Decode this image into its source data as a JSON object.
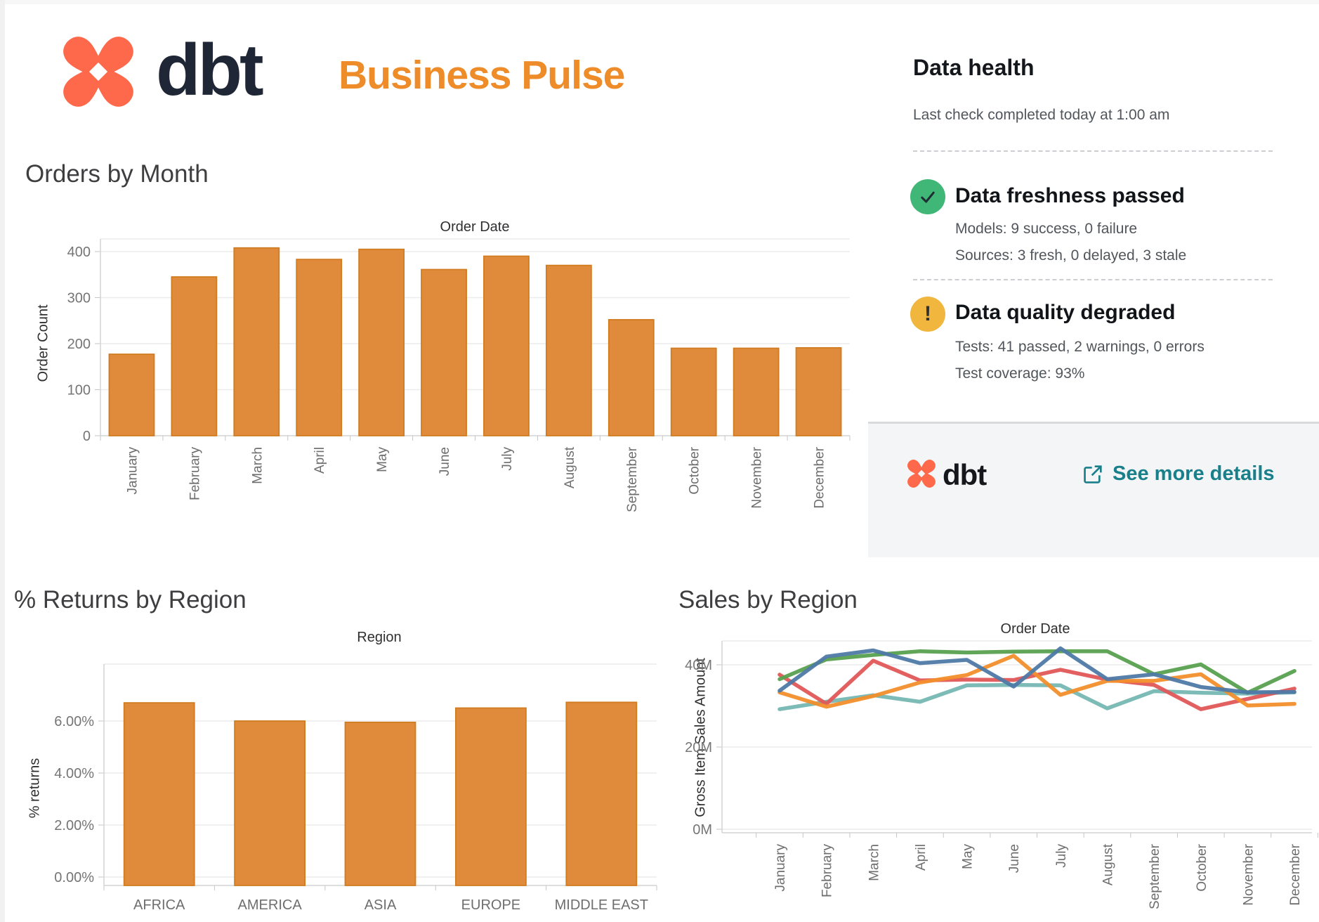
{
  "header": {
    "brand": "dbt",
    "title": "Business Pulse"
  },
  "data_health": {
    "title": "Data health",
    "subtitle": "Last check completed today at 1:00 am",
    "freshness": {
      "status_icon": "check-circle",
      "title": "Data freshness passed",
      "line1": "Models: 9 success, 0 failure",
      "line2": "Sources: 3 fresh, 0 delayed, 3 stale"
    },
    "quality": {
      "status_icon": "warning-circle",
      "title": "Data quality degraded",
      "line1": "Tests: 41 passed, 2 warnings, 0 errors",
      "line2": "Test coverage: 93%"
    },
    "footer": {
      "brand": "dbt",
      "link_label": "See more details",
      "link_icon": "external-link"
    }
  },
  "colors": {
    "brand_orange": "#ff694b",
    "brand_navy": "#1f2736",
    "accent_orange": "#ee8c2a",
    "bar_fill": "#e08a3c",
    "bar_stroke": "#d17c20",
    "success_green": "#41b777",
    "warning_yellow": "#f0b63e",
    "link_teal": "#187f8b"
  },
  "chart_data": [
    {
      "id": "orders-by-month",
      "type": "bar",
      "title": "Orders by Month",
      "xlabel": "Order Date",
      "ylabel": "Order Count",
      "categories": [
        "January",
        "February",
        "March",
        "April",
        "May",
        "June",
        "July",
        "August",
        "September",
        "October",
        "November",
        "December"
      ],
      "values": [
        177,
        345,
        408,
        383,
        405,
        361,
        390,
        370,
        252,
        190,
        190,
        191
      ],
      "yticks": [
        {
          "v": 0,
          "label": "0"
        },
        {
          "v": 100,
          "label": "100"
        },
        {
          "v": 200,
          "label": "200"
        },
        {
          "v": 300,
          "label": "300"
        },
        {
          "v": 400,
          "label": "400"
        }
      ],
      "ylim": [
        0,
        430
      ],
      "grid": true,
      "legend": "none"
    },
    {
      "id": "returns-by-region",
      "type": "bar",
      "title": "% Returns by Region",
      "xlabel": "Region",
      "ylabel": "% returns",
      "categories": [
        "AFRICA",
        "AMERICA",
        "ASIA",
        "EUROPE",
        "MIDDLE EAST"
      ],
      "values": [
        6.7,
        6.0,
        5.95,
        6.5,
        6.72
      ],
      "yticks": [
        {
          "v": 0,
          "label": "0.00%"
        },
        {
          "v": 2,
          "label": "2.00%"
        },
        {
          "v": 4,
          "label": "4.00%"
        },
        {
          "v": 6,
          "label": "6.00%"
        }
      ],
      "ylim": [
        -0.35,
        8.2
      ],
      "grid": true,
      "legend": "none"
    },
    {
      "id": "sales-by-region",
      "type": "line",
      "title": "Sales by Region",
      "xlabel": "Order Date",
      "ylabel": "Gross Item Sales Amount",
      "categories": [
        "January",
        "February",
        "March",
        "April",
        "May",
        "June",
        "July",
        "August",
        "September",
        "October",
        "November",
        "December"
      ],
      "series": [
        {
          "name": "teal",
          "color": "#76b7b2",
          "values": [
            29.2,
            31.0,
            32.6,
            31.0,
            35.0,
            35.1,
            35.0,
            29.4,
            33.6,
            33.2,
            33.0,
            33.3
          ]
        },
        {
          "name": "red",
          "color": "#e15759",
          "values": [
            37.6,
            30.5,
            41.0,
            36.2,
            36.4,
            36.3,
            38.8,
            36.4,
            35.1,
            29.2,
            31.7,
            34.2
          ]
        },
        {
          "name": "orange",
          "color": "#f28e2b",
          "values": [
            33.3,
            29.8,
            32.4,
            35.7,
            37.5,
            42.2,
            32.7,
            36.1,
            36.1,
            37.7,
            30.1,
            30.5
          ]
        },
        {
          "name": "green",
          "color": "#59a14f",
          "values": [
            36.5,
            41.3,
            42.4,
            43.3,
            43.0,
            43.2,
            43.3,
            43.3,
            37.7,
            40.1,
            33.2,
            38.5
          ]
        },
        {
          "name": "blue",
          "color": "#4e79a7",
          "values": [
            33.7,
            42.0,
            43.5,
            40.4,
            41.2,
            34.7,
            44.0,
            36.5,
            37.7,
            34.6,
            33.3,
            33.4
          ]
        }
      ],
      "yticks": [
        {
          "v": 0,
          "label": "0M"
        },
        {
          "v": 20,
          "label": "20M"
        },
        {
          "v": 40,
          "label": "40M"
        }
      ],
      "ylim": [
        0,
        46
      ],
      "grid": true,
      "legend": "none"
    }
  ]
}
